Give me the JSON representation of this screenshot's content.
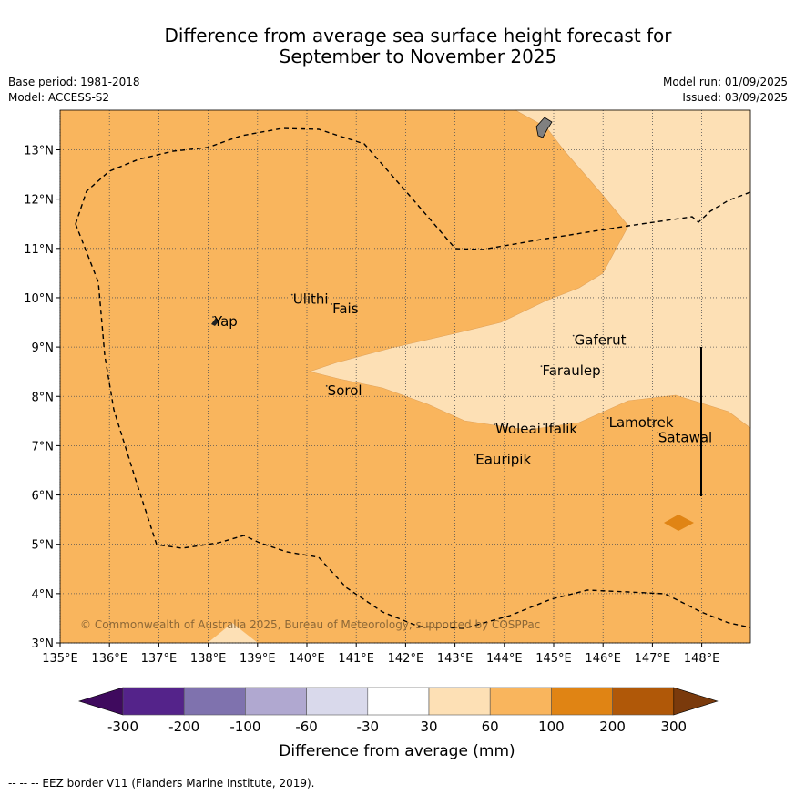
{
  "title_line1": "Difference from average sea surface height forecast for",
  "title_line2": "September to November 2025",
  "meta": {
    "base_period": "Base period: 1981-2018",
    "model": "Model: ACCESS-S2",
    "model_run": "Model run: 01/09/2025",
    "issued": "Issued: 03/09/2025"
  },
  "copyright": "© Commonwealth of Australia 2025, Bureau of Meteorology, supported by COSPPac",
  "footer": "--  --  -- EEZ border V11 (Flanders Marine Institute, 2019).",
  "map": {
    "lon_range": [
      135,
      149
    ],
    "lat_range": [
      3,
      13.8
    ],
    "lon_ticks": [
      "135°E",
      "136°E",
      "137°E",
      "138°E",
      "139°E",
      "140°E",
      "141°E",
      "142°E",
      "143°E",
      "144°E",
      "145°E",
      "146°E",
      "147°E",
      "148°E"
    ],
    "lat_ticks": [
      "3°N",
      "4°N",
      "5°N",
      "6°N",
      "7°N",
      "8°N",
      "9°N",
      "10°N",
      "11°N",
      "12°N",
      "13°N"
    ],
    "places": [
      {
        "name": "Yap",
        "lon": 138.1,
        "lat": 9.5
      },
      {
        "name": "Ulithi",
        "lon": 139.7,
        "lat": 9.95
      },
      {
        "name": "Fais",
        "lon": 140.5,
        "lat": 9.76
      },
      {
        "name": "Gaferut",
        "lon": 145.4,
        "lat": 9.12
      },
      {
        "name": "Faraulep",
        "lon": 144.75,
        "lat": 8.5
      },
      {
        "name": "Sorol",
        "lon": 140.4,
        "lat": 8.1
      },
      {
        "name": "Lamotrek",
        "lon": 146.1,
        "lat": 7.45
      },
      {
        "name": "Satawal",
        "lon": 147.1,
        "lat": 7.15
      },
      {
        "name": "Woleai",
        "lon": 143.8,
        "lat": 7.32
      },
      {
        "name": "Ifalik",
        "lon": 144.8,
        "lat": 7.32
      },
      {
        "name": "Eauripik",
        "lon": 143.4,
        "lat": 6.7
      }
    ],
    "colors": {
      "class_60_100": "#f9b55d",
      "class_30_60": "#fde0b5",
      "class_100_200": "#e08414",
      "land": "#808080"
    }
  },
  "colorbar": {
    "label": "Difference from average (mm)",
    "ticks": [
      "-300",
      "-200",
      "-100",
      "-60",
      "-30",
      "30",
      "60",
      "100",
      "200",
      "300"
    ],
    "colors": [
      "#3f0a5e",
      "#54238a",
      "#7f72ae",
      "#b0a8d0",
      "#d9d9eb",
      "#ffffff",
      "#fde0b5",
      "#f9b55d",
      "#e08414",
      "#b05808",
      "#7a3a0c"
    ]
  }
}
